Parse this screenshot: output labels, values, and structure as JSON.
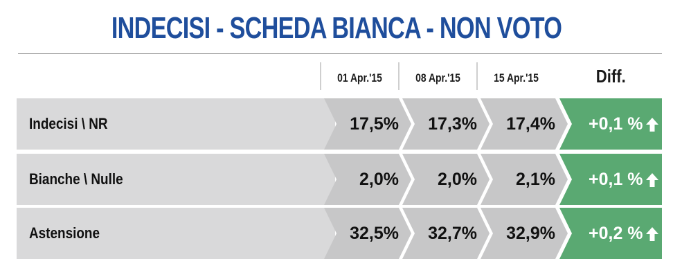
{
  "title": "INDECISI - SCHEDA BIANCA - NON VOTO",
  "colors": {
    "title": "#1f4e9c",
    "row_bg": "#d9d9da",
    "cell_bg": "#c7c7c8",
    "diff_bg": "#5aa972",
    "diff_text": "#ffffff"
  },
  "chart_data": {
    "type": "table",
    "columns": [
      "01 Apr.'15",
      "08 Apr.'15",
      "15 Apr.'15"
    ],
    "diff_header": "Diff.",
    "rows": [
      {
        "label": "Indecisi \\ NR",
        "values": [
          "17,5%",
          "17,3%",
          "17,4%"
        ],
        "diff": "+0,1 %",
        "diff_direction": "up"
      },
      {
        "label": "Bianche \\ Nulle",
        "values": [
          "2,0%",
          "2,0%",
          "2,1%"
        ],
        "diff": "+0,1 %",
        "diff_direction": "up"
      },
      {
        "label": "Astensione",
        "values": [
          "32,5%",
          "32,7%",
          "32,9%"
        ],
        "diff": "+0,2 %",
        "diff_direction": "up"
      }
    ]
  }
}
